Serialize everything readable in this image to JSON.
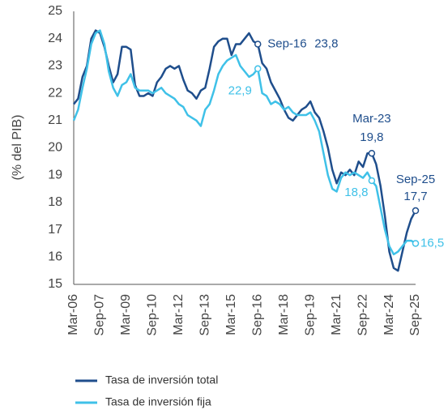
{
  "chart_data": {
    "type": "line",
    "ylabel": "(% del PIB)",
    "categories": [
      "Mar-06",
      null,
      null,
      null,
      null,
      null,
      "Sep-07",
      null,
      null,
      null,
      null,
      null,
      "Mar-09",
      null,
      null,
      null,
      null,
      null,
      "Sep-10",
      null,
      null,
      null,
      null,
      null,
      "Mar-12",
      null,
      null,
      null,
      null,
      null,
      "Sep-13",
      null,
      null,
      null,
      null,
      null,
      "Mar-15",
      null,
      null,
      null,
      null,
      null,
      "Sep-16",
      null,
      null,
      null,
      null,
      null,
      "Mar-18",
      null,
      null,
      null,
      null,
      null,
      "Sep-19",
      null,
      null,
      null,
      null,
      null,
      "Mar-21",
      null,
      null,
      null,
      null,
      null,
      "Sep-22",
      null,
      null,
      null,
      null,
      null,
      "Mar-24",
      null,
      null,
      null,
      null,
      null,
      "Sep-25"
    ],
    "series": [
      {
        "name": "Tasa de inversión total",
        "color": "#1f4e8c",
        "values": [
          21.6,
          21.8,
          22.6,
          23.0,
          24.0,
          24.3,
          24.2,
          23.7,
          23.0,
          22.4,
          22.7,
          23.7,
          23.7,
          23.6,
          22.3,
          21.9,
          21.9,
          22.0,
          21.9,
          22.4,
          22.6,
          22.9,
          23.0,
          22.9,
          23.0,
          22.5,
          22.1,
          22.0,
          21.8,
          22.1,
          22.2,
          22.9,
          23.7,
          23.9,
          24.0,
          24.0,
          23.4,
          23.8,
          23.8,
          24.0,
          24.2,
          23.9,
          23.8,
          23.1,
          22.9,
          22.4,
          22.1,
          21.8,
          21.4,
          21.1,
          21.0,
          21.2,
          21.4,
          21.5,
          21.7,
          21.3,
          21.1,
          20.6,
          20.0,
          19.2,
          18.7,
          19.1,
          19.0,
          19.2,
          19.0,
          19.5,
          19.3,
          19.8,
          19.8,
          19.4,
          18.6,
          17.5,
          16.2,
          15.6,
          15.5,
          16.2,
          16.9,
          17.4,
          17.7
        ],
        "value_labels": [
          null,
          null,
          null,
          null,
          null,
          null,
          null,
          null,
          null,
          null,
          null,
          null,
          null,
          null,
          null,
          null,
          null,
          null,
          null,
          null,
          null,
          null,
          null,
          null,
          null,
          null,
          null,
          null,
          null,
          null,
          null,
          null,
          null,
          null,
          null,
          null,
          null,
          null,
          null,
          null,
          null,
          null,
          "23,8",
          null,
          null,
          null,
          null,
          null,
          null,
          null,
          null,
          null,
          null,
          null,
          null,
          null,
          null,
          null,
          null,
          null,
          null,
          null,
          null,
          null,
          null,
          null,
          null,
          null,
          "19,8",
          null,
          null,
          null,
          null,
          null,
          null,
          null,
          null,
          null,
          "17,7"
        ]
      },
      {
        "name": "Tasa de inversión fija",
        "color": "#3fc1e8",
        "values": [
          21.0,
          21.4,
          22.2,
          22.9,
          23.8,
          24.2,
          24.3,
          23.8,
          22.8,
          22.2,
          21.9,
          22.3,
          22.4,
          22.7,
          22.2,
          22.1,
          22.1,
          22.1,
          22.0,
          22.1,
          22.2,
          22.0,
          21.9,
          21.8,
          21.6,
          21.5,
          21.2,
          21.1,
          21.0,
          20.8,
          21.4,
          21.6,
          22.1,
          22.7,
          23.0,
          23.2,
          23.3,
          23.4,
          23.0,
          22.8,
          22.6,
          22.7,
          22.9,
          22.0,
          21.9,
          21.6,
          21.7,
          21.6,
          21.4,
          21.5,
          21.3,
          21.2,
          21.2,
          21.2,
          21.3,
          21.0,
          20.6,
          19.8,
          19.0,
          18.5,
          18.4,
          18.9,
          19.1,
          19.0,
          19.1,
          19.0,
          18.9,
          19.1,
          18.8,
          18.6,
          17.8,
          17.0,
          16.4,
          16.1,
          16.2,
          16.4,
          16.6,
          16.6,
          16.5
        ],
        "value_labels": [
          null,
          null,
          null,
          null,
          null,
          null,
          null,
          null,
          null,
          null,
          null,
          null,
          null,
          null,
          null,
          null,
          null,
          null,
          null,
          null,
          null,
          null,
          null,
          null,
          null,
          null,
          null,
          null,
          null,
          null,
          null,
          null,
          null,
          null,
          null,
          null,
          null,
          null,
          null,
          null,
          null,
          null,
          "22,9",
          null,
          null,
          null,
          null,
          null,
          null,
          null,
          null,
          null,
          null,
          null,
          null,
          null,
          null,
          null,
          null,
          null,
          null,
          null,
          null,
          null,
          null,
          null,
          null,
          null,
          "18,8",
          null,
          null,
          null,
          null,
          null,
          null,
          null,
          null,
          null,
          "16,5"
        ]
      }
    ],
    "annotations": [
      "Sep-16",
      "Mar-23",
      "Sep-25"
    ],
    "ylim": [
      15,
      25
    ],
    "yticks": [
      15,
      16,
      17,
      18,
      19,
      20,
      21,
      22,
      23,
      24,
      25
    ],
    "grid": false
  }
}
